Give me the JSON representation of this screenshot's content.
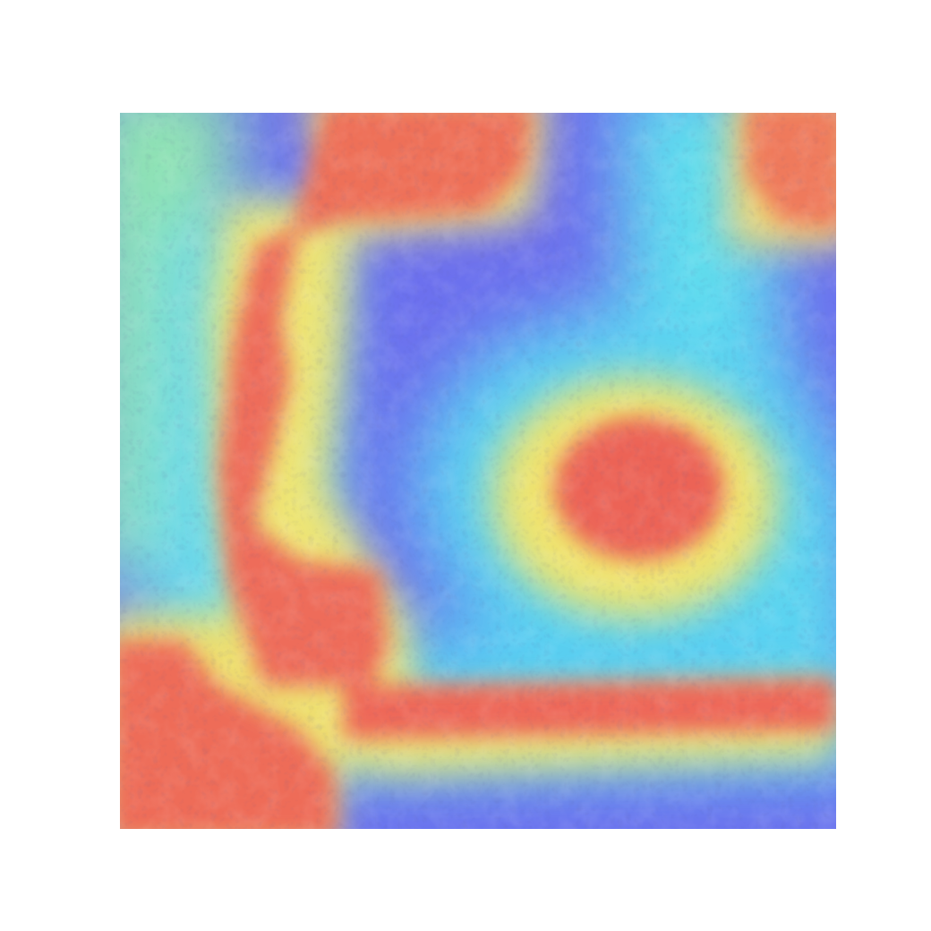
{
  "image": {
    "kind": "attention heatmap overlay on histology tissue",
    "colormap": "jet",
    "colors": {
      "background": "#ffffff",
      "low": "#6a6cf0",
      "cool_mid": "#52c8f5",
      "cyan": "#5fe8e8",
      "green": "#9be0a0",
      "yellow": "#f0e870",
      "orange": "#f2a35c",
      "high": "#ee6a58"
    }
  }
}
